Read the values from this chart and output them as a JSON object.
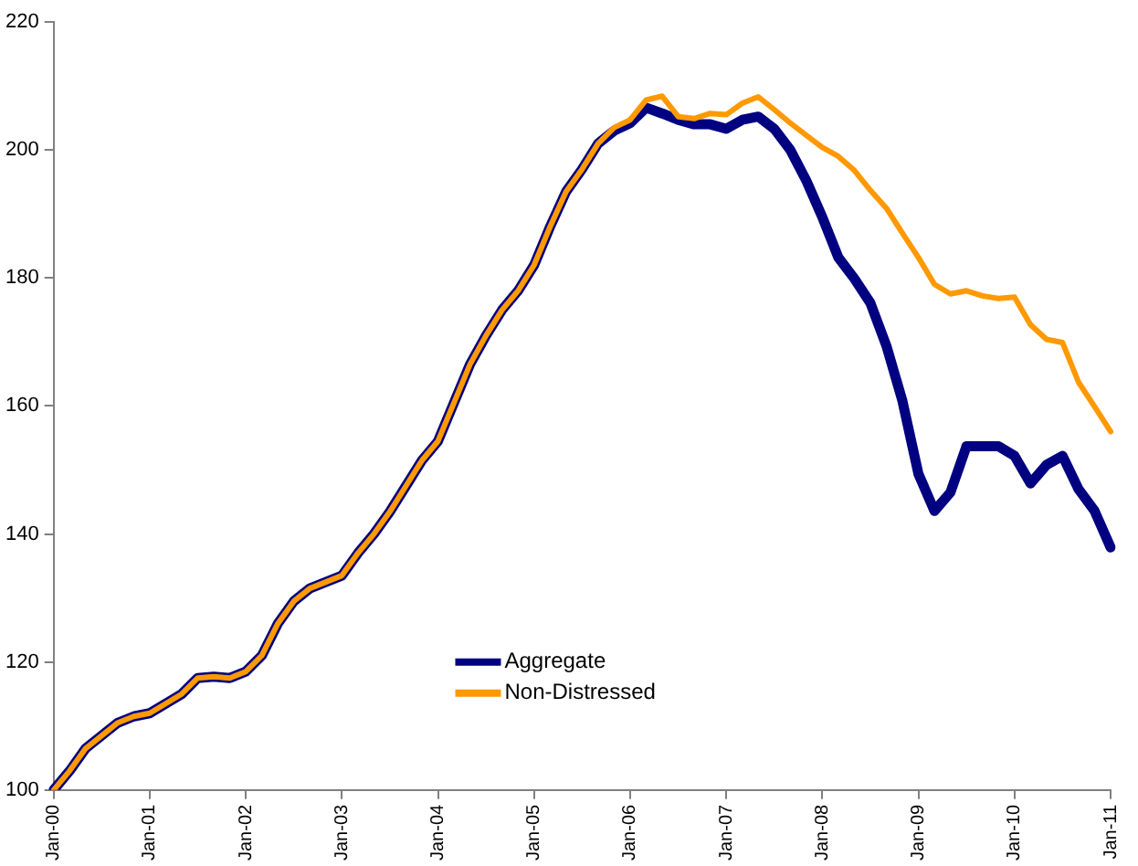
{
  "chart_data": {
    "type": "line",
    "categories": [
      "Jan-00",
      null,
      null,
      null,
      null,
      null,
      "Jan-01",
      null,
      null,
      null,
      null,
      null,
      "Jan-02",
      null,
      null,
      null,
      null,
      null,
      "Jan-03",
      null,
      null,
      null,
      null,
      null,
      "Jan-04",
      null,
      null,
      null,
      null,
      null,
      "Jan-05",
      null,
      null,
      null,
      null,
      null,
      "Jan-06",
      null,
      null,
      null,
      null,
      null,
      "Jan-07",
      null,
      null,
      null,
      null,
      null,
      "Jan-08",
      null,
      null,
      null,
      null,
      null,
      "Jan-09",
      null,
      null,
      null,
      null,
      null,
      "Jan-10",
      null,
      null,
      null,
      null,
      null,
      "Jan-11"
    ],
    "series": [
      {
        "name": "Aggregate",
        "color": "#000080",
        "values": [
          100,
          103,
          106.5,
          108.5,
          110.5,
          111.5,
          112,
          113.5,
          115,
          117.5,
          117.7,
          117.5,
          118.5,
          121,
          126,
          129.5,
          131.5,
          132.5,
          133.5,
          137,
          140,
          143.5,
          147.5,
          151.5,
          154.5,
          160.5,
          166.5,
          171,
          175,
          178,
          182,
          188,
          193.5,
          197,
          201,
          203,
          204.2,
          206.6,
          205.7,
          204.7,
          204,
          204,
          203.3,
          204.7,
          205.2,
          203.3,
          200,
          195.2,
          189.5,
          183.2,
          179.9,
          176.1,
          169.4,
          160.8,
          149.4,
          143.6,
          146.5,
          153.7,
          153.7,
          153.7,
          152.2,
          147.9,
          150.8,
          152.2,
          147,
          143.6,
          137.9
        ]
      },
      {
        "name": "Non-Distressed",
        "color": "#ff9900",
        "values": [
          100,
          103,
          106.5,
          108.5,
          110.5,
          111.5,
          112,
          113.5,
          115,
          117.5,
          117.7,
          117.5,
          118.5,
          121,
          126,
          129.5,
          131.5,
          132.5,
          133.5,
          137,
          140,
          143.5,
          147.5,
          151.5,
          154.5,
          160.5,
          166.5,
          171,
          175,
          178,
          182,
          188,
          193.5,
          197,
          201,
          203.5,
          204.7,
          207.8,
          208.4,
          205.2,
          204.9,
          205.7,
          205.5,
          207.3,
          208.3,
          206.3,
          204.2,
          202.3,
          200.4,
          199,
          196.8,
          193.7,
          190.9,
          187,
          183.2,
          179,
          177.5,
          178,
          177.2,
          176.8,
          177,
          172.7,
          170.4,
          169.9,
          163.7,
          159.9,
          156
        ]
      }
    ],
    "ylim": [
      100,
      220
    ],
    "yticks": [
      100,
      120,
      140,
      160,
      180,
      200,
      220
    ],
    "grid": false,
    "legend": "bottom",
    "marker": "none",
    "line_style": "solid"
  }
}
